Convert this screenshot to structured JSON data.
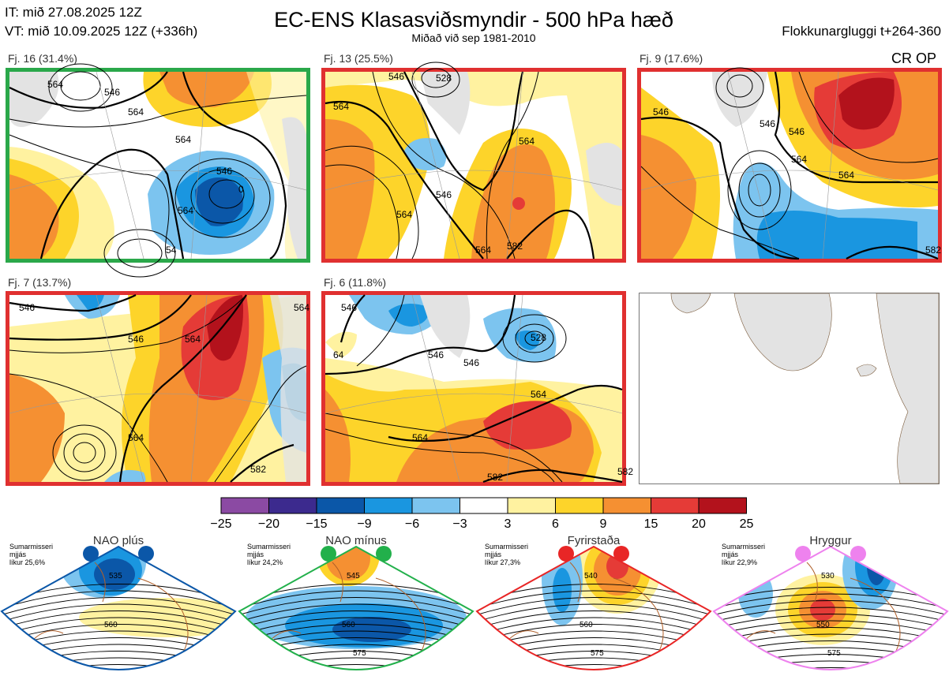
{
  "header": {
    "it_line": "IT: mið 27.08.2025 12Z",
    "vt_line": "VT: mið 10.09.2025 12Z  (+336h)",
    "title": "EC-ENS Klasasviðsmyndir - 500 hPa hæð",
    "subtitle": "Miðað við sep 1981-2010",
    "window": "Flokkunargluggi t+264-360",
    "cr_op": "CR OP"
  },
  "colors": {
    "green_border": "#2aa84a",
    "red_border": "#e03030",
    "nao_plus": "#0b57a8",
    "nao_minus": "#22b04b",
    "blocking": "#e82626",
    "ridge": "#ee82ee"
  },
  "chart_data": [
    {
      "type": "heatmap",
      "id": "cluster-1",
      "title": "Fj. 16 (31.4%)",
      "members": 16,
      "percent": 31.4,
      "border": "green",
      "contour_labels": [
        "564",
        "564",
        "546",
        "0",
        "564",
        "54",
        "546",
        "564"
      ]
    },
    {
      "type": "heatmap",
      "id": "cluster-2",
      "title": "Fj. 13 (25.5%)",
      "members": 13,
      "percent": 25.5,
      "border": "red",
      "contour_labels": [
        "546",
        "528",
        "564",
        "546",
        "564",
        "564",
        "582",
        "564"
      ]
    },
    {
      "type": "heatmap",
      "id": "cluster-3",
      "title": "Fj. 9 (17.6%)",
      "members": 9,
      "percent": 17.6,
      "border": "red",
      "contour_labels": [
        "546",
        "546",
        "546",
        "564",
        "564",
        "582"
      ]
    },
    {
      "type": "heatmap",
      "id": "cluster-4",
      "title": "Fj. 7 (13.7%)",
      "members": 7,
      "percent": 13.7,
      "border": "red",
      "contour_labels": [
        "546",
        "546",
        "564",
        "564",
        "582",
        "564"
      ]
    },
    {
      "type": "heatmap",
      "id": "cluster-5",
      "title": "Fj. 6 (11.8%)",
      "members": 6,
      "percent": 11.8,
      "border": "red",
      "contour_labels": [
        "546",
        "546",
        "528",
        "546",
        "564",
        "564",
        "582",
        "582",
        "64"
      ]
    },
    {
      "type": "colorbar",
      "id": "anomaly-scale",
      "ticks": [
        "−25",
        "−20",
        "−15",
        "−9",
        "−6",
        "−3",
        "3",
        "6",
        "9",
        "15",
        "20",
        "25"
      ],
      "tick_values": [
        -25,
        -20,
        -15,
        -9,
        -6,
        -3,
        3,
        6,
        9,
        15,
        20,
        25
      ],
      "colors": [
        "#8b4aa3",
        "#3c2a8e",
        "#0b57a8",
        "#1a96e0",
        "#7cc4ef",
        "#ffffff",
        "#fff2a0",
        "#fdd42a",
        "#f59032",
        "#e53b37",
        "#b3121c"
      ]
    },
    {
      "type": "heatmap",
      "id": "regimes",
      "regimes": [
        {
          "name": "NAO plús",
          "label1": "Sumarmisseri",
          "label2": "mjjás",
          "label3": "líkur 25,6%",
          "likelihood": 25.6,
          "contours": [
            "535",
            "560"
          ],
          "color_key": "nao_plus"
        },
        {
          "name": "NAO mínus",
          "label1": "Sumarmisseri",
          "label2": "mjjás",
          "label3": "líkur 24,2%",
          "likelihood": 24.2,
          "contours": [
            "545",
            "560",
            "575"
          ],
          "color_key": "nao_minus"
        },
        {
          "name": "Fyrirstaða",
          "label1": "Sumarmisseri",
          "label2": "mjjás",
          "label3": "líkur 27,3%",
          "likelihood": 27.3,
          "contours": [
            "540",
            "560",
            "575"
          ],
          "color_key": "blocking"
        },
        {
          "name": "Hryggur",
          "label1": "Sumarmisseri",
          "label2": "mjjás",
          "label3": "líkur 22,9%",
          "likelihood": 22.9,
          "contours": [
            "530",
            "550",
            "575"
          ],
          "color_key": "ridge"
        }
      ]
    }
  ]
}
